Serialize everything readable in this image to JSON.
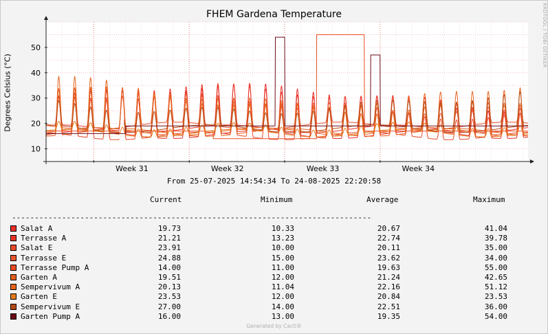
{
  "chart_data": {
    "type": "line",
    "title": "FHEM Gardena Temperature",
    "ylabel": "Degrees Celsius (°C)",
    "xlabel": "",
    "ylim": [
      5,
      60
    ],
    "yticks": [
      10,
      20,
      30,
      40,
      50
    ],
    "xlim_days": [
      0,
      30.3
    ],
    "x_ticks": [
      {
        "label": "Week 31",
        "day": 5.4
      },
      {
        "label": "Week 32",
        "day": 11.4
      },
      {
        "label": "Week 33",
        "day": 17.4
      },
      {
        "label": "Week 34",
        "day": 23.4
      }
    ],
    "grid": true,
    "series": [
      {
        "name": "Salat A",
        "color": "#e8302a",
        "current": "19.73",
        "minimum": "10.33",
        "average": "20.67",
        "maximum": "41.04"
      },
      {
        "name": "Terrasse A",
        "color": "#e83528",
        "current": "21.21",
        "minimum": "13.23",
        "average": "22.74",
        "maximum": "39.78"
      },
      {
        "name": "Salat E",
        "color": "#e84a2c",
        "current": "23.91",
        "minimum": "10.00",
        "average": "20.11",
        "maximum": "35.00"
      },
      {
        "name": "Terrasse E",
        "color": "#e85530",
        "current": "24.88",
        "minimum": "15.00",
        "average": "23.62",
        "maximum": "34.00"
      },
      {
        "name": "Terrasse Pump A",
        "color": "#e84c22",
        "current": "14.00",
        "minimum": "11.00",
        "average": "19.63",
        "maximum": "55.00"
      },
      {
        "name": "Garten A",
        "color": "#e2601c",
        "current": "19.51",
        "minimum": "12.00",
        "average": "21.24",
        "maximum": "42.65"
      },
      {
        "name": "Sempervivum A",
        "color": "#e6651e",
        "current": "20.13",
        "minimum": "11.04",
        "average": "22.16",
        "maximum": "51.12"
      },
      {
        "name": "Garten E",
        "color": "#e37a1c",
        "current": "23.53",
        "minimum": "12.00",
        "average": "20.84",
        "maximum": "23.53"
      },
      {
        "name": "Sempervivum E",
        "color": "#b44a14",
        "current": "27.00",
        "minimum": "14.00",
        "average": "22.51",
        "maximum": "36.00"
      },
      {
        "name": "Garten Pump A",
        "color": "#6a0a16",
        "current": "16.00",
        "minimum": "13.00",
        "average": "19.35",
        "maximum": "54.00"
      }
    ]
  },
  "range_text": "From 25-07-2025 14:54:34 To 24-08-2025 22:20:58",
  "side_label": "RRDTOOL / TOBI OETIKER",
  "legend_headers": {
    "current": "Current",
    "minimum": "Minimum",
    "average": "Average",
    "maximum": "Maximum"
  },
  "separator": "----------------------------------------------------------------------------------",
  "footer": "Generated by Cacti®"
}
